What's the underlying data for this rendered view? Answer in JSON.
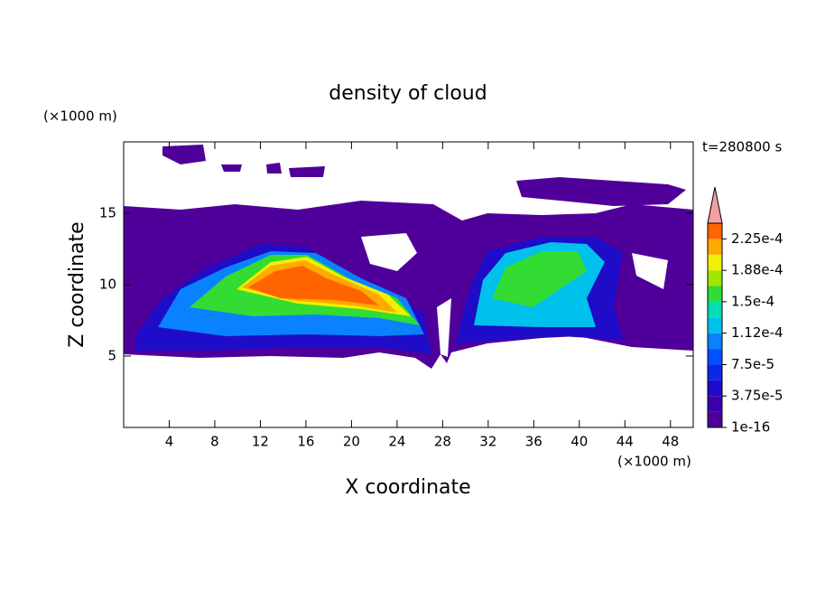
{
  "chart_data": {
    "type": "contour",
    "title": "density of cloud",
    "x_label": "X coordinate",
    "y_label": "Z coordinate",
    "x_unit": "(×1000 m)",
    "y_unit": "(×1000 m)",
    "time_label": "t=280800 s",
    "xlim": [
      0,
      50
    ],
    "ylim": [
      0,
      20
    ],
    "xticks": [
      4,
      8,
      12,
      16,
      20,
      24,
      28,
      32,
      36,
      40,
      44,
      48
    ],
    "yticks": [
      5,
      10,
      15
    ],
    "colorbar": {
      "lim": [
        1e-16,
        0.00024375
      ],
      "ticks": [
        {
          "value": 1e-16,
          "label": "1e-16"
        },
        {
          "value": 3.75e-05,
          "label": "3.75e-5"
        },
        {
          "value": 7.5e-05,
          "label": "7.5e-5"
        },
        {
          "value": 0.0001125,
          "label": "1.12e-4"
        },
        {
          "value": 0.00015,
          "label": "1.5e-4"
        },
        {
          "value": 0.0001875,
          "label": "1.88e-4"
        },
        {
          "value": 0.000225,
          "label": "2.25e-4"
        }
      ],
      "colors": [
        "#50009a",
        "#3c00aa",
        "#1e0cc8",
        "#0a28e6",
        "#0050ff",
        "#0a82ff",
        "#00c0ec",
        "#00e0b4",
        "#32dc32",
        "#a0e600",
        "#f0f000",
        "#ffaa00",
        "#ff6400",
        "#ff1e00"
      ],
      "extend_color": "#f4a0a0"
    }
  }
}
